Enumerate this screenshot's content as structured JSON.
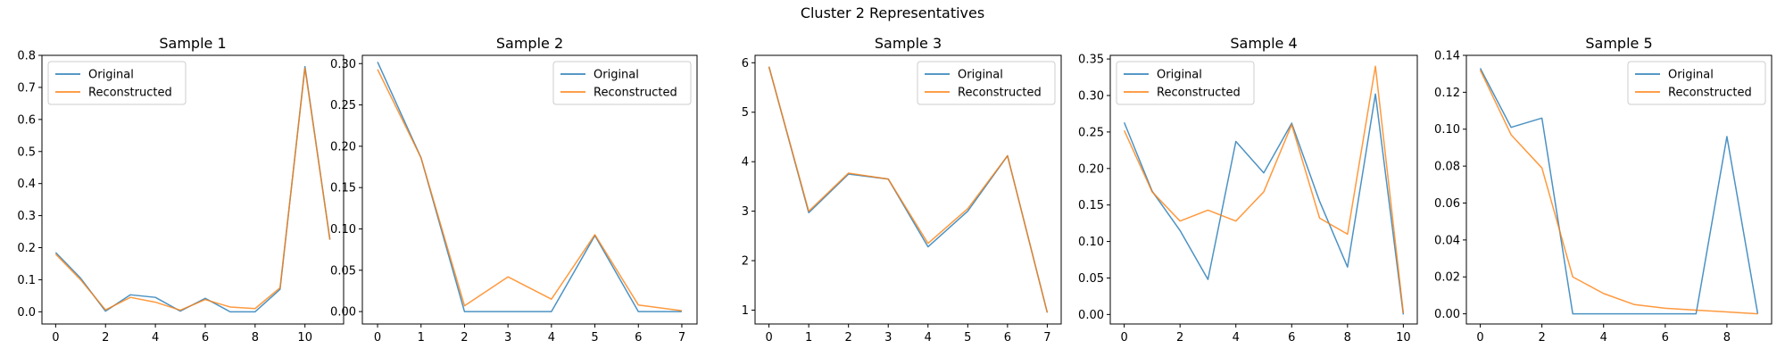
{
  "figure_title": "Cluster 2 Representatives",
  "colors": {
    "original": "#1f77b4",
    "reconstructed": "#ff7f0e"
  },
  "chart_data": [
    {
      "type": "line",
      "title": "Sample 1",
      "xlim": [
        -0.55,
        11.55
      ],
      "ylim": [
        -0.038,
        0.8
      ],
      "xticks": [
        0,
        2,
        4,
        6,
        8,
        10
      ],
      "yticks": [
        0.0,
        0.1,
        0.2,
        0.3,
        0.4,
        0.5,
        0.6,
        0.7,
        0.8
      ],
      "ytick_labels": [
        "0.0",
        "0.1",
        "0.2",
        "0.3",
        "0.4",
        "0.5",
        "0.6",
        "0.7",
        "0.8"
      ],
      "legend": "upper left",
      "series": [
        {
          "name": "Original",
          "x": [
            0,
            1,
            2,
            3,
            4,
            5,
            6,
            7,
            8,
            9,
            10,
            11
          ],
          "values": [
            0.185,
            0.105,
            0.002,
            0.053,
            0.045,
            0.002,
            0.042,
            0.0,
            0.0,
            0.07,
            0.765,
            0.225
          ]
        },
        {
          "name": "Reconstructed",
          "x": [
            0,
            1,
            2,
            3,
            4,
            5,
            6,
            7,
            8,
            9,
            10,
            11
          ],
          "values": [
            0.18,
            0.1,
            0.006,
            0.045,
            0.03,
            0.005,
            0.038,
            0.015,
            0.01,
            0.075,
            0.76,
            0.225
          ]
        }
      ]
    },
    {
      "type": "line",
      "title": "Sample 2",
      "xlim": [
        -0.35,
        7.35
      ],
      "ylim": [
        -0.015,
        0.31
      ],
      "xticks": [
        0,
        1,
        2,
        3,
        4,
        5,
        6,
        7
      ],
      "yticks": [
        0.0,
        0.05,
        0.1,
        0.15,
        0.2,
        0.25,
        0.3
      ],
      "ytick_labels": [
        "0.00",
        "0.05",
        "0.10",
        "0.15",
        "0.20",
        "0.25",
        "0.30"
      ],
      "legend": "upper right",
      "series": [
        {
          "name": "Original",
          "x": [
            0,
            1,
            2,
            3,
            4,
            5,
            6,
            7
          ],
          "values": [
            0.302,
            0.186,
            0.0,
            0.0,
            0.0,
            0.092,
            0.0,
            0.0
          ]
        },
        {
          "name": "Reconstructed",
          "x": [
            0,
            1,
            2,
            3,
            4,
            5,
            6,
            7
          ],
          "values": [
            0.293,
            0.186,
            0.007,
            0.042,
            0.015,
            0.093,
            0.008,
            0.001
          ]
        }
      ]
    },
    {
      "type": "line",
      "title": "Sample 3",
      "xlim": [
        -0.35,
        7.35
      ],
      "ylim": [
        0.72,
        6.15
      ],
      "xticks": [
        0,
        1,
        2,
        3,
        4,
        5,
        6,
        7
      ],
      "yticks": [
        1,
        2,
        3,
        4,
        5,
        6
      ],
      "ytick_labels": [
        "1",
        "2",
        "3",
        "4",
        "5",
        "6"
      ],
      "legend": "upper right",
      "series": [
        {
          "name": "Original",
          "x": [
            0,
            1,
            2,
            3,
            4,
            5,
            6,
            7
          ],
          "values": [
            5.92,
            2.97,
            3.75,
            3.65,
            2.28,
            3.0,
            4.12,
            0.95
          ]
        },
        {
          "name": "Reconstructed",
          "x": [
            0,
            1,
            2,
            3,
            4,
            5,
            6,
            7
          ],
          "values": [
            5.92,
            3.0,
            3.77,
            3.65,
            2.35,
            3.05,
            4.12,
            0.95
          ]
        }
      ]
    },
    {
      "type": "line",
      "title": "Sample 4",
      "xlim": [
        -0.5,
        10.5
      ],
      "ylim": [
        -0.013,
        0.355
      ],
      "xticks": [
        0,
        2,
        4,
        6,
        8,
        10
      ],
      "yticks": [
        0.0,
        0.05,
        0.1,
        0.15,
        0.2,
        0.25,
        0.3,
        0.35
      ],
      "ytick_labels": [
        "0.00",
        "0.05",
        "0.10",
        "0.15",
        "0.20",
        "0.25",
        "0.30",
        "0.35"
      ],
      "legend": "upper left",
      "series": [
        {
          "name": "Original",
          "x": [
            0,
            1,
            2,
            3,
            4,
            5,
            6,
            7,
            8,
            9,
            10
          ],
          "values": [
            0.263,
            0.169,
            0.115,
            0.048,
            0.237,
            0.194,
            0.262,
            0.155,
            0.065,
            0.302,
            0.0
          ]
        },
        {
          "name": "Reconstructed",
          "x": [
            0,
            1,
            2,
            3,
            4,
            5,
            6,
            7,
            8,
            9,
            10
          ],
          "values": [
            0.252,
            0.168,
            0.128,
            0.143,
            0.128,
            0.168,
            0.26,
            0.132,
            0.11,
            0.34,
            0.002
          ]
        }
      ]
    },
    {
      "type": "line",
      "title": "Sample 5",
      "xlim": [
        -0.45,
        9.45
      ],
      "ylim": [
        -0.0055,
        0.14
      ],
      "xticks": [
        0,
        2,
        4,
        6,
        8
      ],
      "yticks": [
        0.0,
        0.02,
        0.04,
        0.06,
        0.08,
        0.1,
        0.12,
        0.14
      ],
      "ytick_labels": [
        "0.00",
        "0.02",
        "0.04",
        "0.06",
        "0.08",
        "0.10",
        "0.12",
        "0.14"
      ],
      "legend": "upper right",
      "series": [
        {
          "name": "Original",
          "x": [
            0,
            1,
            2,
            3,
            4,
            5,
            6,
            7,
            8,
            9
          ],
          "values": [
            0.133,
            0.101,
            0.106,
            0.0,
            0.0,
            0.0,
            0.0,
            0.0,
            0.096,
            0.0
          ]
        },
        {
          "name": "Reconstructed",
          "x": [
            0,
            1,
            2,
            3,
            4,
            5,
            6,
            7,
            8,
            9
          ],
          "values": [
            0.132,
            0.097,
            0.079,
            0.02,
            0.011,
            0.005,
            0.003,
            0.002,
            0.001,
            0.0
          ]
        }
      ]
    }
  ]
}
